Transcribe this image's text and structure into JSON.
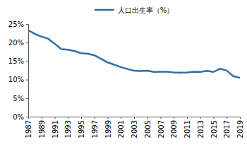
{
  "chart_data": {
    "type": "line",
    "x": [
      1987,
      1988,
      1989,
      1990,
      1991,
      1992,
      1993,
      1994,
      1995,
      1996,
      1997,
      1998,
      1999,
      2000,
      2001,
      2002,
      2003,
      2004,
      2005,
      2006,
      2007,
      2008,
      2009,
      2010,
      2011,
      2012,
      2013,
      2014,
      2015,
      2016,
      2017,
      2018,
      2019
    ],
    "series": [
      {
        "name": "人口出生率（%）",
        "color": "#2f6fa8",
        "values": [
          23.33,
          22.37,
          21.58,
          21.06,
          19.68,
          18.24,
          18.09,
          17.7,
          17.12,
          16.98,
          16.57,
          15.64,
          14.64,
          14.03,
          13.38,
          12.86,
          12.41,
          12.29,
          12.4,
          12.09,
          12.1,
          12.14,
          11.95,
          11.9,
          11.93,
          12.1,
          12.08,
          12.37,
          12.07,
          12.95,
          12.43,
          10.94,
          10.48
        ]
      }
    ],
    "xlim": [
      1987,
      2019
    ],
    "xticks": [
      1987,
      1989,
      1991,
      1993,
      1995,
      1997,
      1999,
      2001,
      2003,
      2005,
      2007,
      2009,
      2011,
      2013,
      2015,
      2017,
      2019
    ],
    "ylim": [
      0,
      25
    ],
    "yticks": [
      {
        "value": 0,
        "label": "0%"
      },
      {
        "value": 5,
        "label": "5%"
      },
      {
        "value": 10,
        "label": "10%"
      },
      {
        "value": 15,
        "label": "15%"
      },
      {
        "value": 20,
        "label": "20%"
      },
      {
        "value": 25,
        "label": "25%"
      }
    ],
    "grid": false,
    "legend": "top"
  }
}
